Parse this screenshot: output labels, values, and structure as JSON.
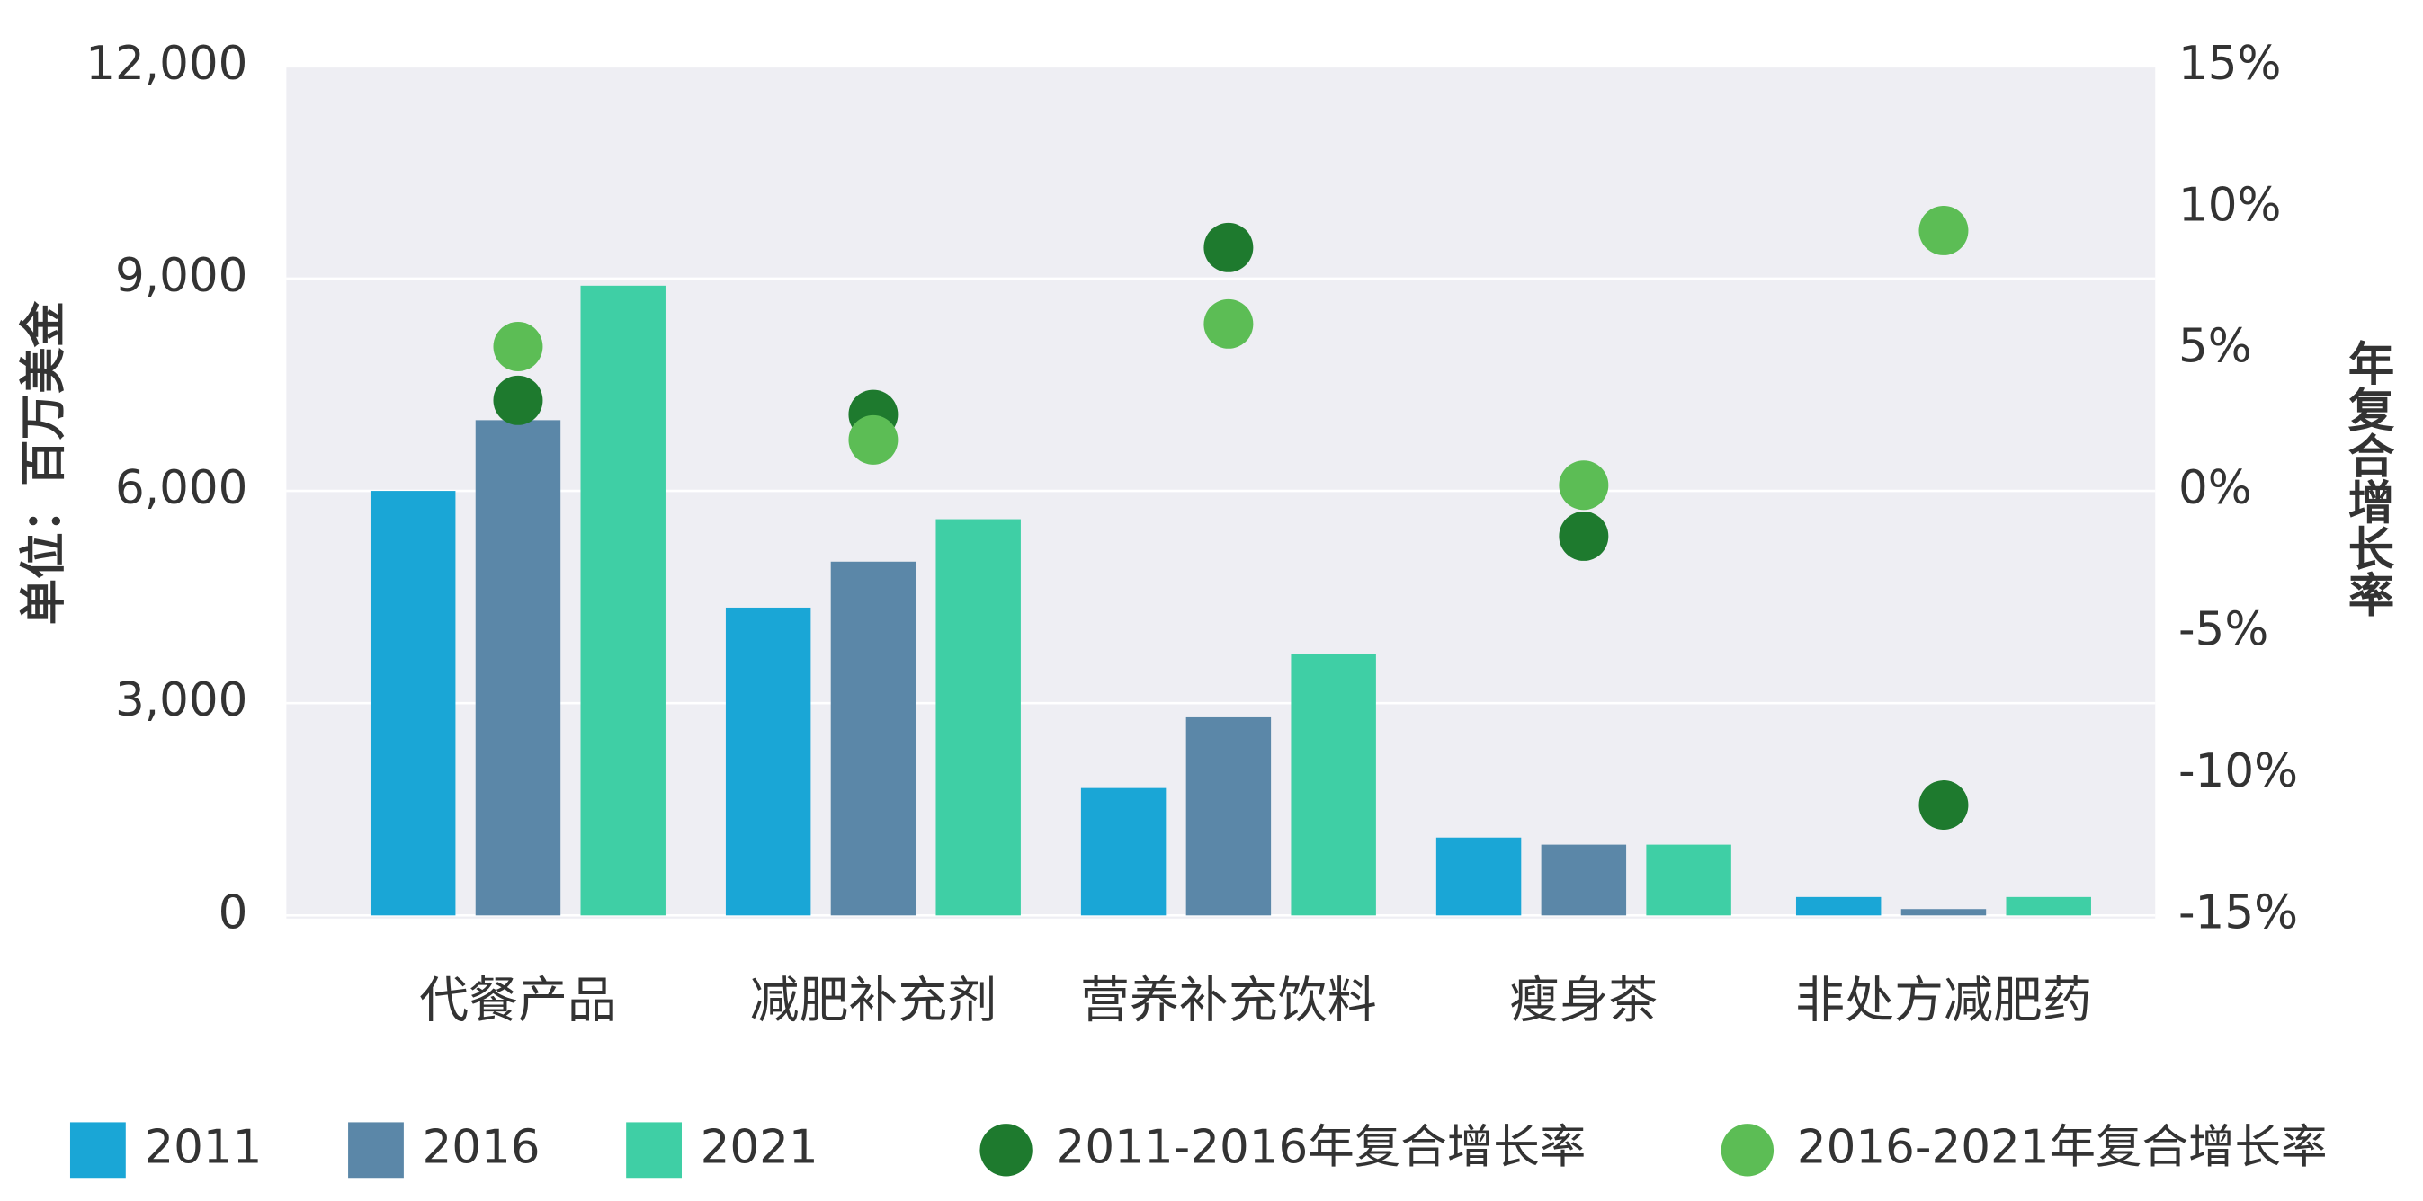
{
  "chart_data": {
    "type": "bar",
    "y_label": "单位：百万美金",
    "y2_label": "年复合增长率",
    "categories": [
      "代餐产品",
      "减肥补充剂",
      "营养补充饮料",
      "瘦身茶",
      "非处方减肥药"
    ],
    "series": [
      {
        "name": "2011",
        "color": "#1aa6d6",
        "type": "bar",
        "values": [
          6000,
          4350,
          1800,
          1100,
          260
        ]
      },
      {
        "name": "2016",
        "color": "#5b87a8",
        "type": "bar",
        "values": [
          7000,
          5000,
          2800,
          1000,
          90
        ]
      },
      {
        "name": "2021",
        "color": "#3fcfa5",
        "type": "bar",
        "values": [
          8900,
          5600,
          3700,
          1000,
          260
        ]
      },
      {
        "name": "2011-2016年复合增长率",
        "color": "#1e7a2e",
        "type": "scatter",
        "axis": "y2",
        "values": [
          3.2,
          2.7,
          8.6,
          -1.6,
          -11.1
        ]
      },
      {
        "name": "2016-2021年复合增长率",
        "color": "#5cbd55",
        "type": "scatter",
        "axis": "y2",
        "values": [
          5.1,
          1.8,
          5.9,
          0.2,
          9.2
        ]
      }
    ],
    "ylim": [
      0,
      12000
    ],
    "yticks": [
      0,
      {
        "value": 3000,
        "label": "3,000"
      },
      {
        "value": 6000,
        "label": "6,000"
      },
      {
        "value": 9000,
        "label": "9,000"
      },
      {
        "value": 12000,
        "label": "12,000"
      }
    ],
    "y2lim": [
      -15,
      15
    ],
    "y2ticks": [
      {
        "value": -15,
        "label": "-15%"
      },
      {
        "value": -10,
        "label": "-10%"
      },
      {
        "value": -5,
        "label": "-5%"
      },
      {
        "value": 0,
        "label": "0%"
      },
      {
        "value": 5,
        "label": "5%"
      },
      {
        "value": 10,
        "label": "10%"
      },
      {
        "value": 15,
        "label": "15%"
      }
    ],
    "grid": true
  }
}
